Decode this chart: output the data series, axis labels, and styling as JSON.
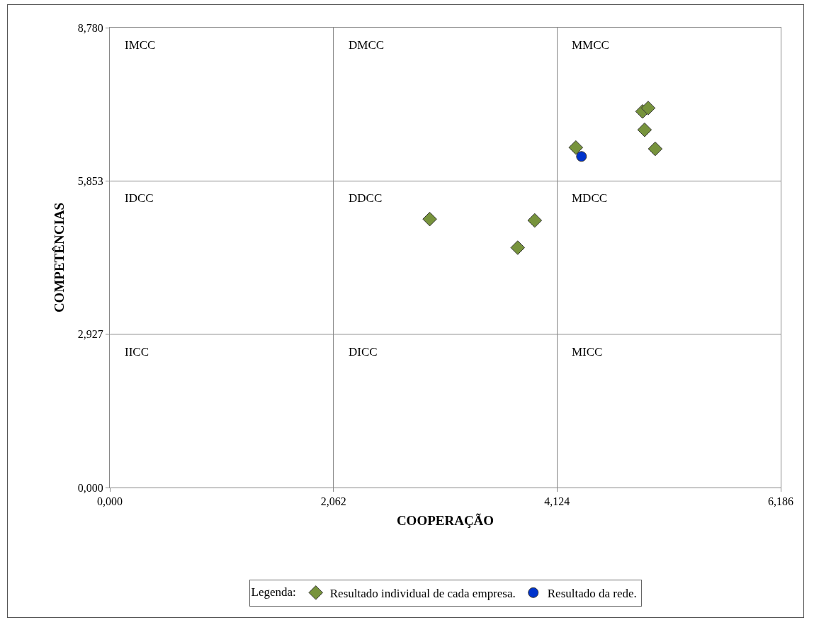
{
  "chart_data": {
    "type": "scatter",
    "xlabel": "COOPERAÇÃO",
    "ylabel": "COMPETÊNCIAS",
    "legend_title": "Legenda:",
    "series": [
      {
        "name": "Resultado individual de cada empresa.",
        "color": "#77933c",
        "marker": "diamond",
        "x": [
          2.95,
          3.918,
          3.761,
          4.297,
          4.912,
          4.964,
          4.931,
          5.029
        ],
        "values": [
          5.125,
          5.099,
          4.579,
          6.491,
          7.18,
          7.245,
          6.829,
          6.465
        ]
      },
      {
        "name": "Resultado da rede.",
        "color": "#0033cc",
        "marker": "circle",
        "x": [
          4.349
        ],
        "values": [
          6.321
        ]
      }
    ],
    "xlim": [
      0,
      6.186
    ],
    "ylim": [
      0,
      8.78
    ],
    "xticks": [
      {
        "value": 0,
        "label": "0,000"
      },
      {
        "value": 2.062,
        "label": "2,062"
      },
      {
        "value": 4.124,
        "label": "4,124"
      },
      {
        "value": 6.186,
        "label": "6,186"
      }
    ],
    "yticks": [
      {
        "value": 0,
        "label": "0,000"
      },
      {
        "value": 2.927,
        "label": "2,927"
      },
      {
        "value": 5.853,
        "label": "5,853"
      },
      {
        "value": 8.78,
        "label": "8,780"
      }
    ],
    "grid": true,
    "legend": "bottom",
    "annotations": [
      "IMCC",
      "DMCC",
      "MMCC",
      "IDCC",
      "DDCC",
      "MDCC",
      "IICC",
      "DICC",
      "MICC"
    ]
  }
}
